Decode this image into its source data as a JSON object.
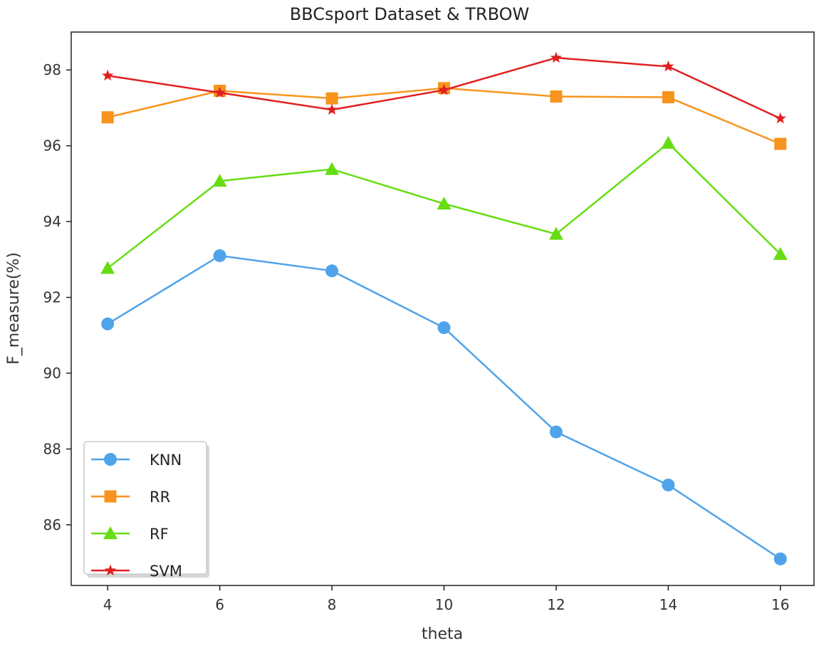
{
  "chart_data": {
    "type": "line",
    "title": "BBCsport Dataset & TRBOW",
    "xlabel": "theta",
    "ylabel": "F_measure(%)",
    "x": [
      4,
      6,
      8,
      10,
      12,
      14,
      16
    ],
    "xticks": [
      "4",
      "6",
      "8",
      "10",
      "12",
      "14",
      "16"
    ],
    "yticks": [
      "86",
      "88",
      "90",
      "92",
      "94",
      "96",
      "98"
    ],
    "xlim": [
      3.35,
      16.6
    ],
    "ylim": [
      84.4,
      99.0
    ],
    "grid": false,
    "legend_position": "bottom-left",
    "series": [
      {
        "name": "KNN",
        "color": "#4fa3ea",
        "marker": "circle",
        "values": [
          91.3,
          93.1,
          92.7,
          91.2,
          88.45,
          87.05,
          85.1
        ]
      },
      {
        "name": "RR",
        "color": "#f7941d",
        "marker": "square",
        "values": [
          96.75,
          97.45,
          97.25,
          97.52,
          97.3,
          97.28,
          96.05
        ]
      },
      {
        "name": "RF",
        "color": "#66dd11",
        "marker": "triangle",
        "values": [
          92.77,
          95.07,
          95.38,
          94.47,
          93.67,
          96.07,
          93.14
        ]
      },
      {
        "name": "SVM",
        "color": "#e02020",
        "marker": "star",
        "values": [
          97.85,
          97.4,
          96.95,
          97.47,
          98.32,
          98.09,
          96.72
        ]
      }
    ]
  }
}
